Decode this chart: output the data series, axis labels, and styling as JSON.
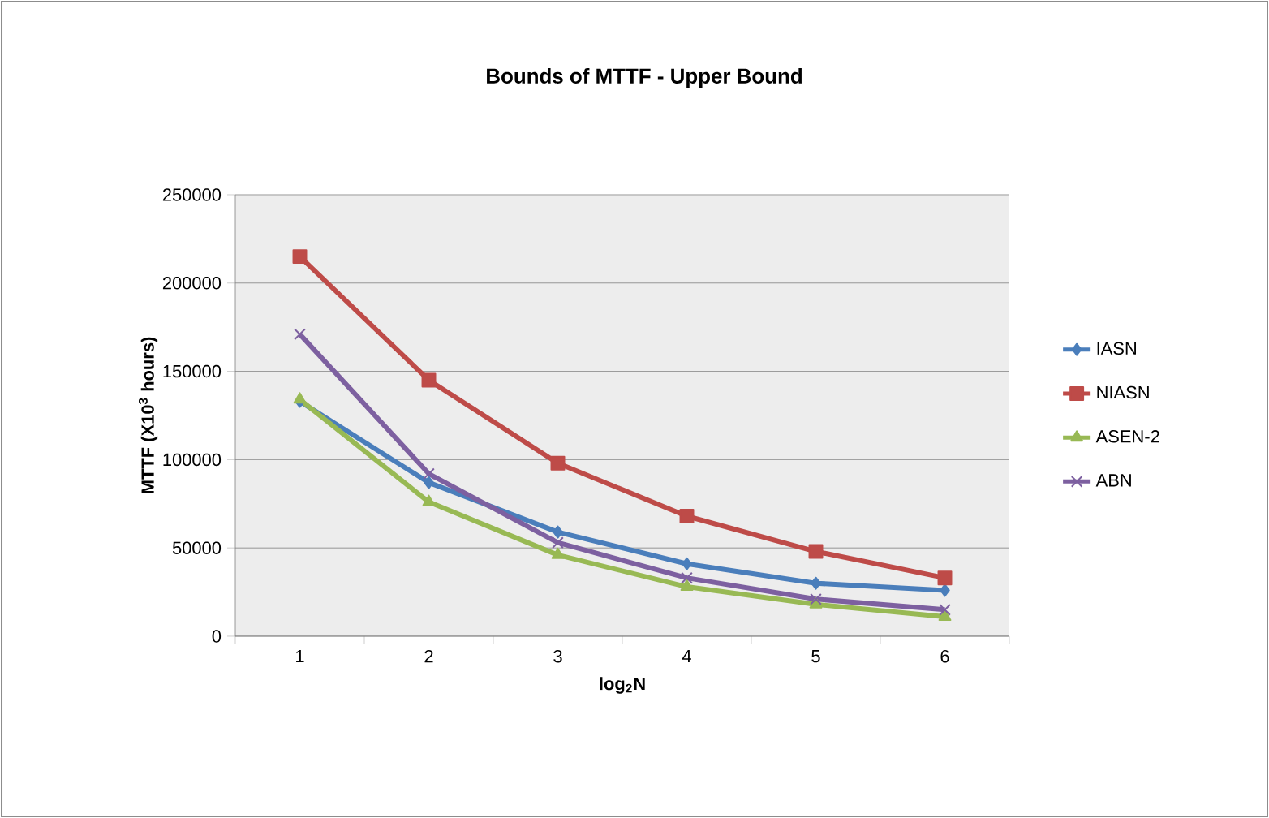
{
  "chart_data": {
    "type": "line",
    "title": "Bounds of MTTF - Upper Bound",
    "xlabel": "log$_{2}$N",
    "ylabel": "MTTF (X10$^{3}$ hours)",
    "categories": [
      "1",
      "2",
      "3",
      "4",
      "5",
      "6"
    ],
    "ylim": [
      0,
      250000
    ],
    "yticks": [
      0,
      50000,
      100000,
      150000,
      200000,
      250000
    ],
    "grid": "y",
    "legend": "right",
    "line_style": "solid",
    "series": [
      {
        "name": "IASN",
        "color": "#4a7ebb",
        "marker": "diamond",
        "values": [
          133000,
          87000,
          59000,
          41000,
          30000,
          26000
        ]
      },
      {
        "name": "NIASN",
        "color": "#be4b48",
        "marker": "square",
        "values": [
          215000,
          145000,
          98000,
          68000,
          48000,
          33000
        ]
      },
      {
        "name": "ASEN-2",
        "color": "#98b954",
        "marker": "triangle",
        "values": [
          134000,
          76000,
          46000,
          28000,
          18000,
          11000
        ]
      },
      {
        "name": "ABN",
        "color": "#7d60a0",
        "marker": "cross",
        "values": [
          171000,
          92000,
          53000,
          33000,
          21000,
          15000
        ]
      }
    ]
  }
}
